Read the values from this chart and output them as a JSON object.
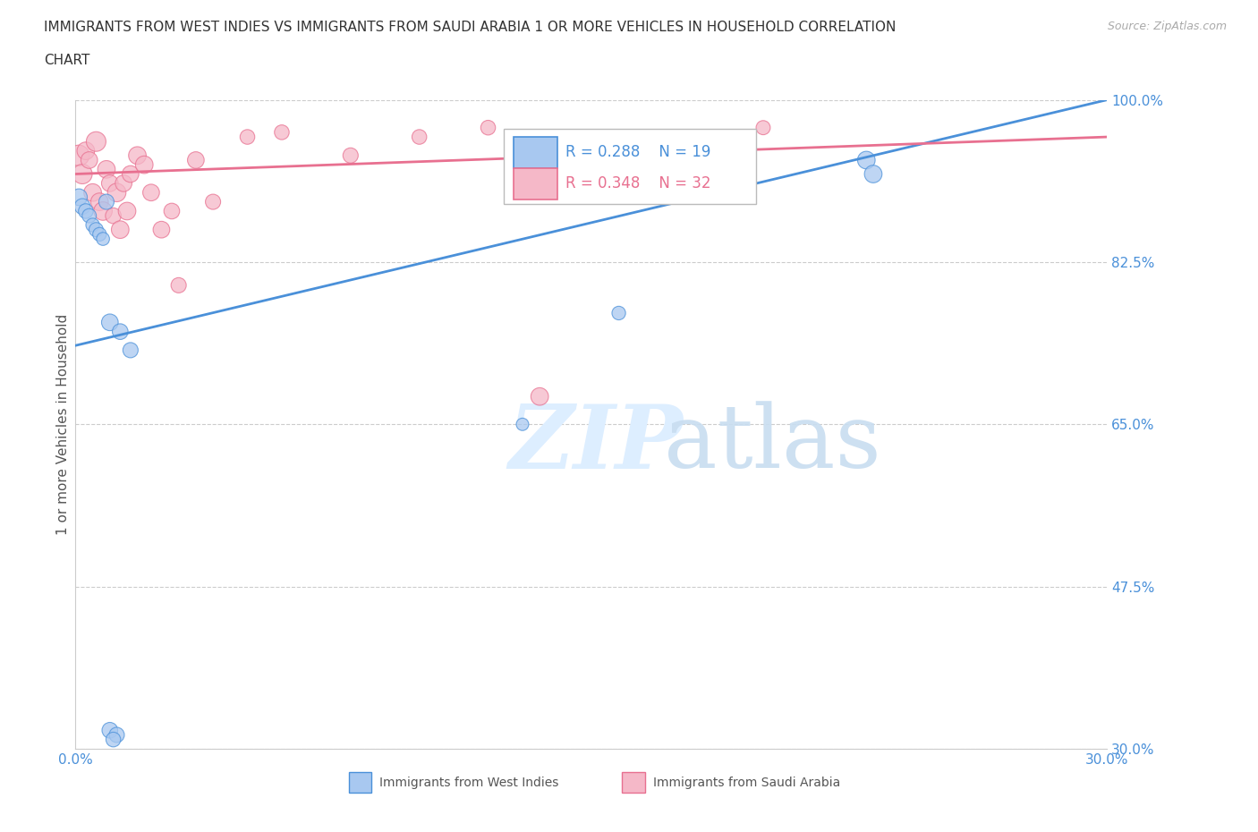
{
  "title_line1": "IMMIGRANTS FROM WEST INDIES VS IMMIGRANTS FROM SAUDI ARABIA 1 OR MORE VEHICLES IN HOUSEHOLD CORRELATION",
  "title_line2": "CHART",
  "source": "Source: ZipAtlas.com",
  "ylabel": "1 or more Vehicles in Household",
  "xmin": 0.0,
  "xmax": 0.3,
  "ymin": 0.3,
  "ymax": 1.0,
  "yticks": [
    0.3,
    0.475,
    0.65,
    0.825,
    1.0
  ],
  "ytick_labels": [
    "30.0%",
    "47.5%",
    "65.0%",
    "82.5%",
    "100.0%"
  ],
  "xticks": [
    0.0,
    0.05,
    0.1,
    0.15,
    0.2,
    0.25,
    0.3
  ],
  "xtick_labels": [
    "0.0%",
    "",
    "",
    "",
    "",
    "",
    "30.0%"
  ],
  "grid_color": "#cccccc",
  "background_color": "#ffffff",
  "blue_color": "#a8c8f0",
  "blue_line_color": "#4a90d9",
  "pink_color": "#f5b8c8",
  "pink_line_color": "#e87090",
  "legend_r1": "R = 0.288",
  "legend_n1": "N = 19",
  "legend_r2": "R = 0.348",
  "legend_n2": "N = 32",
  "label1": "Immigrants from West Indies",
  "label2": "Immigrants from Saudi Arabia",
  "west_indies_x": [
    0.001,
    0.002,
    0.003,
    0.004,
    0.005,
    0.006,
    0.007,
    0.008,
    0.009,
    0.01,
    0.013,
    0.016,
    0.13,
    0.158,
    0.23,
    0.232,
    0.01,
    0.012,
    0.011
  ],
  "west_indies_y": [
    0.895,
    0.885,
    0.88,
    0.875,
    0.865,
    0.86,
    0.855,
    0.85,
    0.89,
    0.76,
    0.75,
    0.73,
    0.65,
    0.77,
    0.935,
    0.92,
    0.32,
    0.315,
    0.31
  ],
  "saudi_x": [
    0.001,
    0.002,
    0.003,
    0.004,
    0.005,
    0.006,
    0.007,
    0.008,
    0.009,
    0.01,
    0.011,
    0.012,
    0.013,
    0.014,
    0.015,
    0.016,
    0.018,
    0.02,
    0.022,
    0.025,
    0.028,
    0.03,
    0.035,
    0.04,
    0.05,
    0.06,
    0.08,
    0.1,
    0.12,
    0.15,
    0.2,
    0.135
  ],
  "saudi_y": [
    0.94,
    0.92,
    0.945,
    0.935,
    0.9,
    0.955,
    0.89,
    0.88,
    0.925,
    0.91,
    0.875,
    0.9,
    0.86,
    0.91,
    0.88,
    0.92,
    0.94,
    0.93,
    0.9,
    0.86,
    0.88,
    0.8,
    0.935,
    0.89,
    0.96,
    0.965,
    0.94,
    0.96,
    0.97,
    0.96,
    0.97,
    0.68
  ],
  "blue_trend_x": [
    0.0,
    0.3
  ],
  "blue_trend_y": [
    0.735,
    1.0
  ],
  "pink_trend_x": [
    0.0,
    0.3
  ],
  "pink_trend_y": [
    0.92,
    0.96
  ],
  "blue_sizes": [
    180,
    160,
    140,
    130,
    120,
    130,
    120,
    110,
    150,
    180,
    160,
    150,
    100,
    120,
    200,
    200,
    160,
    150,
    140
  ],
  "pink_sizes": [
    280,
    250,
    200,
    180,
    200,
    250,
    200,
    220,
    200,
    180,
    160,
    220,
    200,
    180,
    200,
    180,
    200,
    200,
    180,
    180,
    160,
    150,
    180,
    150,
    140,
    140,
    150,
    140,
    140,
    140,
    130,
    200
  ]
}
